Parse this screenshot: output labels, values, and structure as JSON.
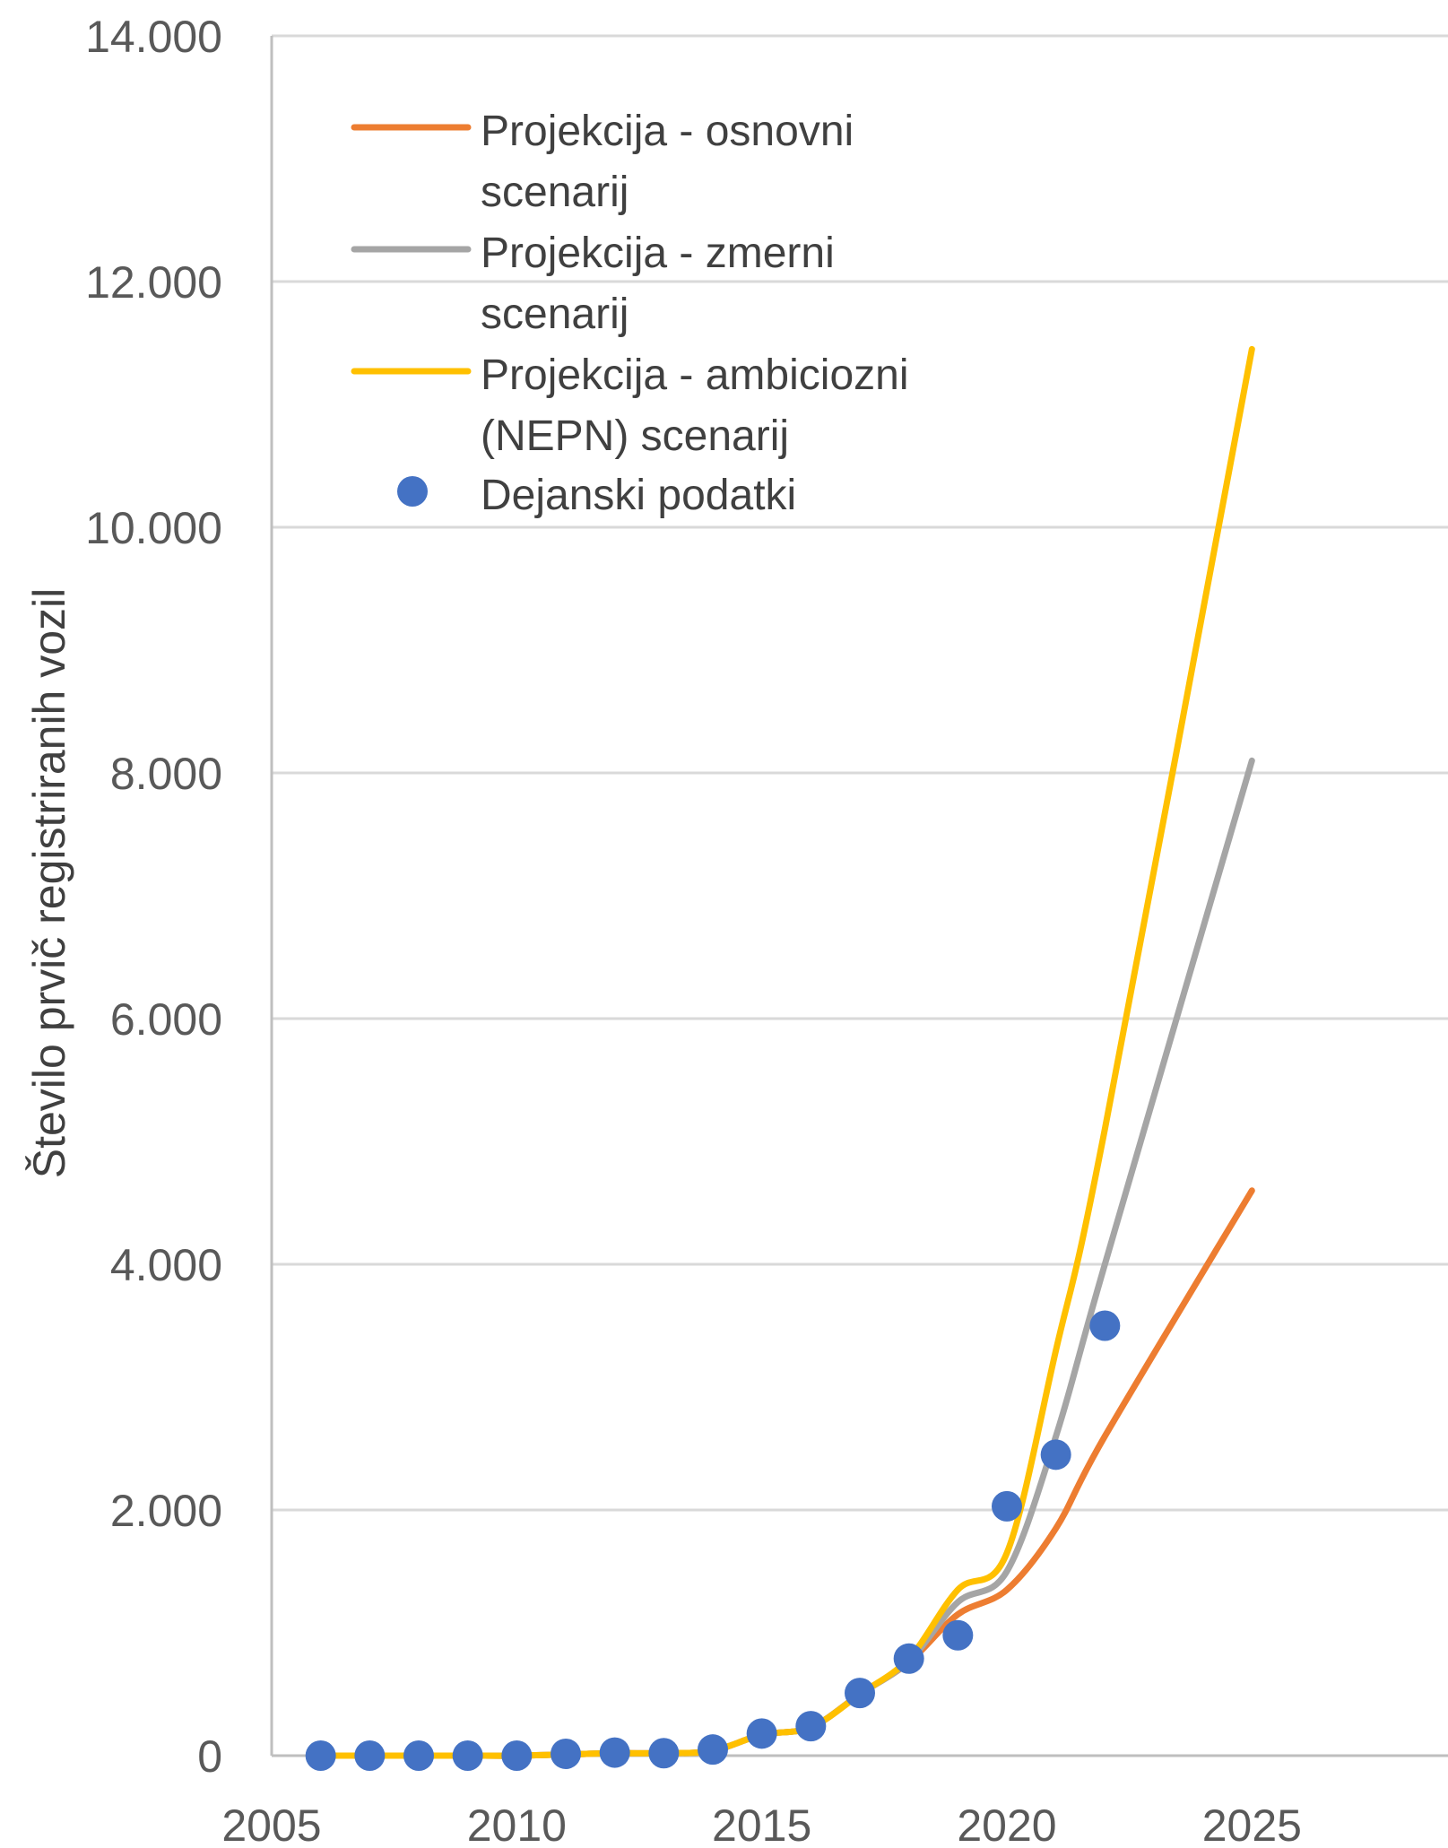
{
  "chart_data": {
    "type": "line",
    "title": "",
    "xlabel": "",
    "ylabel": "Število prvič registriranih vozil",
    "xlim": [
      2005,
      2029
    ],
    "ylim": [
      0,
      14000
    ],
    "x_ticks": [
      2005,
      2010,
      2015,
      2020,
      2025
    ],
    "x_tick_labels": [
      "2005",
      "2010",
      "2015",
      "2020",
      "2025"
    ],
    "y_ticks": [
      0,
      2000,
      4000,
      6000,
      8000,
      10000,
      12000,
      14000
    ],
    "y_tick_labels": [
      "0",
      "2.000",
      "4.000",
      "6.000",
      "8.000",
      "10.000",
      "12.000",
      "14.000"
    ],
    "grid": true,
    "legend_position": "top-left",
    "series": [
      {
        "name": "Projekcija - osnovni scenarij",
        "legend_lines": [
          "Projekcija - osnovni",
          "scenarij"
        ],
        "kind": "line",
        "color": "#ED7D31",
        "points": [
          [
            2006,
            0
          ],
          [
            2007,
            0
          ],
          [
            2008,
            0
          ],
          [
            2009,
            0
          ],
          [
            2010,
            0
          ],
          [
            2011,
            10
          ],
          [
            2012,
            20
          ],
          [
            2013,
            20
          ],
          [
            2014,
            40
          ],
          [
            2015,
            170
          ],
          [
            2016,
            230
          ],
          [
            2017,
            500
          ],
          [
            2018,
            760
          ],
          [
            2019,
            1150
          ],
          [
            2020,
            1350
          ],
          [
            2021,
            1850
          ],
          [
            2022,
            2600
          ],
          [
            2025,
            4600
          ]
        ]
      },
      {
        "name": "Projekcija - zmerni scenarij",
        "legend_lines": [
          "Projekcija - zmerni",
          "scenarij"
        ],
        "kind": "line",
        "color": "#A5A5A5",
        "points": [
          [
            2006,
            0
          ],
          [
            2007,
            0
          ],
          [
            2008,
            0
          ],
          [
            2009,
            0
          ],
          [
            2010,
            0
          ],
          [
            2011,
            10
          ],
          [
            2012,
            20
          ],
          [
            2013,
            20
          ],
          [
            2014,
            40
          ],
          [
            2015,
            170
          ],
          [
            2016,
            230
          ],
          [
            2017,
            500
          ],
          [
            2018,
            770
          ],
          [
            2019,
            1250
          ],
          [
            2020,
            1500
          ],
          [
            2021,
            2600
          ],
          [
            2022,
            4000
          ],
          [
            2025,
            8100
          ]
        ]
      },
      {
        "name": "Projekcija - ambiciozni (NEPN) scenarij",
        "legend_lines": [
          "Projekcija - ambiciozni",
          "(NEPN) scenarij"
        ],
        "kind": "line",
        "color": "#FFC000",
        "points": [
          [
            2006,
            0
          ],
          [
            2007,
            0
          ],
          [
            2008,
            0
          ],
          [
            2009,
            0
          ],
          [
            2010,
            0
          ],
          [
            2011,
            10
          ],
          [
            2012,
            20
          ],
          [
            2013,
            20
          ],
          [
            2014,
            40
          ],
          [
            2015,
            170
          ],
          [
            2016,
            230
          ],
          [
            2017,
            500
          ],
          [
            2018,
            790
          ],
          [
            2019,
            1350
          ],
          [
            2020,
            1650
          ],
          [
            2021,
            3300
          ],
          [
            2022,
            5100
          ],
          [
            2025,
            11450
          ]
        ]
      },
      {
        "name": "Dejanski podatki",
        "legend_lines": [
          "Dejanski podatki"
        ],
        "kind": "scatter",
        "color": "#4472C4",
        "points": [
          [
            2006,
            0
          ],
          [
            2007,
            0
          ],
          [
            2008,
            0
          ],
          [
            2009,
            0
          ],
          [
            2010,
            0
          ],
          [
            2011,
            15
          ],
          [
            2012,
            25
          ],
          [
            2013,
            20
          ],
          [
            2014,
            50
          ],
          [
            2015,
            180
          ],
          [
            2016,
            240
          ],
          [
            2017,
            510
          ],
          [
            2018,
            790
          ],
          [
            2019,
            980
          ],
          [
            2020,
            2030
          ],
          [
            2021,
            2450
          ],
          [
            2022,
            3500
          ]
        ]
      }
    ]
  }
}
